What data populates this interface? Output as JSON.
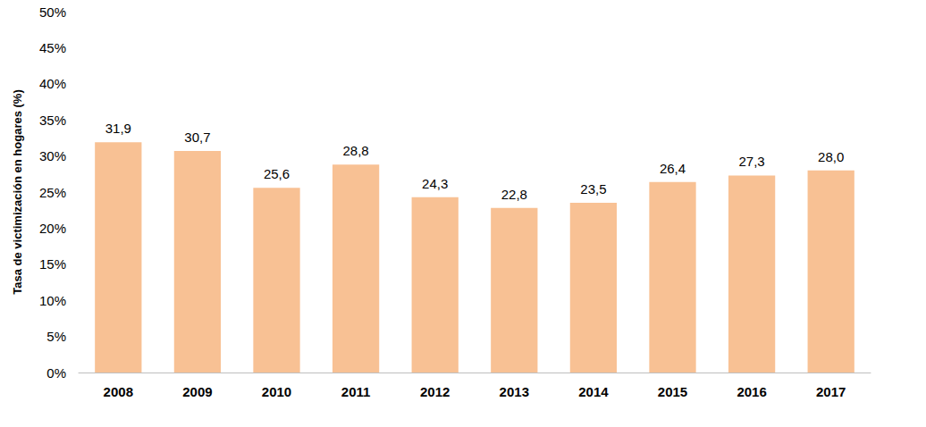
{
  "chart_data": {
    "type": "bar",
    "y_label": "Tasa de victimización en hogares (%)",
    "categories": [
      "2008",
      "2009",
      "2010",
      "2011",
      "2012",
      "2013",
      "2014",
      "2015",
      "2016",
      "2017"
    ],
    "values": [
      31.9,
      30.7,
      25.6,
      28.8,
      24.3,
      22.8,
      23.5,
      26.4,
      27.3,
      28.0
    ],
    "value_labels": [
      "31,9",
      "30,7",
      "25,6",
      "28,8",
      "24,3",
      "22,8",
      "23,5",
      "26,4",
      "27,3",
      "28,0"
    ],
    "color": "#f8c194",
    "ylim": [
      0,
      50
    ],
    "yticks": [
      {
        "value": 0,
        "label": "0%"
      },
      {
        "value": 5,
        "label": "5%"
      },
      {
        "value": 10,
        "label": "10%"
      },
      {
        "value": 15,
        "label": "15%"
      },
      {
        "value": 20,
        "label": "20%"
      },
      {
        "value": 25,
        "label": "25%"
      },
      {
        "value": 30,
        "label": "30%"
      },
      {
        "value": 35,
        "label": "35%"
      },
      {
        "value": 40,
        "label": "40%"
      },
      {
        "value": 45,
        "label": "45%"
      },
      {
        "value": 50,
        "label": "50%"
      }
    ],
    "grid": false,
    "data_labels": true
  }
}
